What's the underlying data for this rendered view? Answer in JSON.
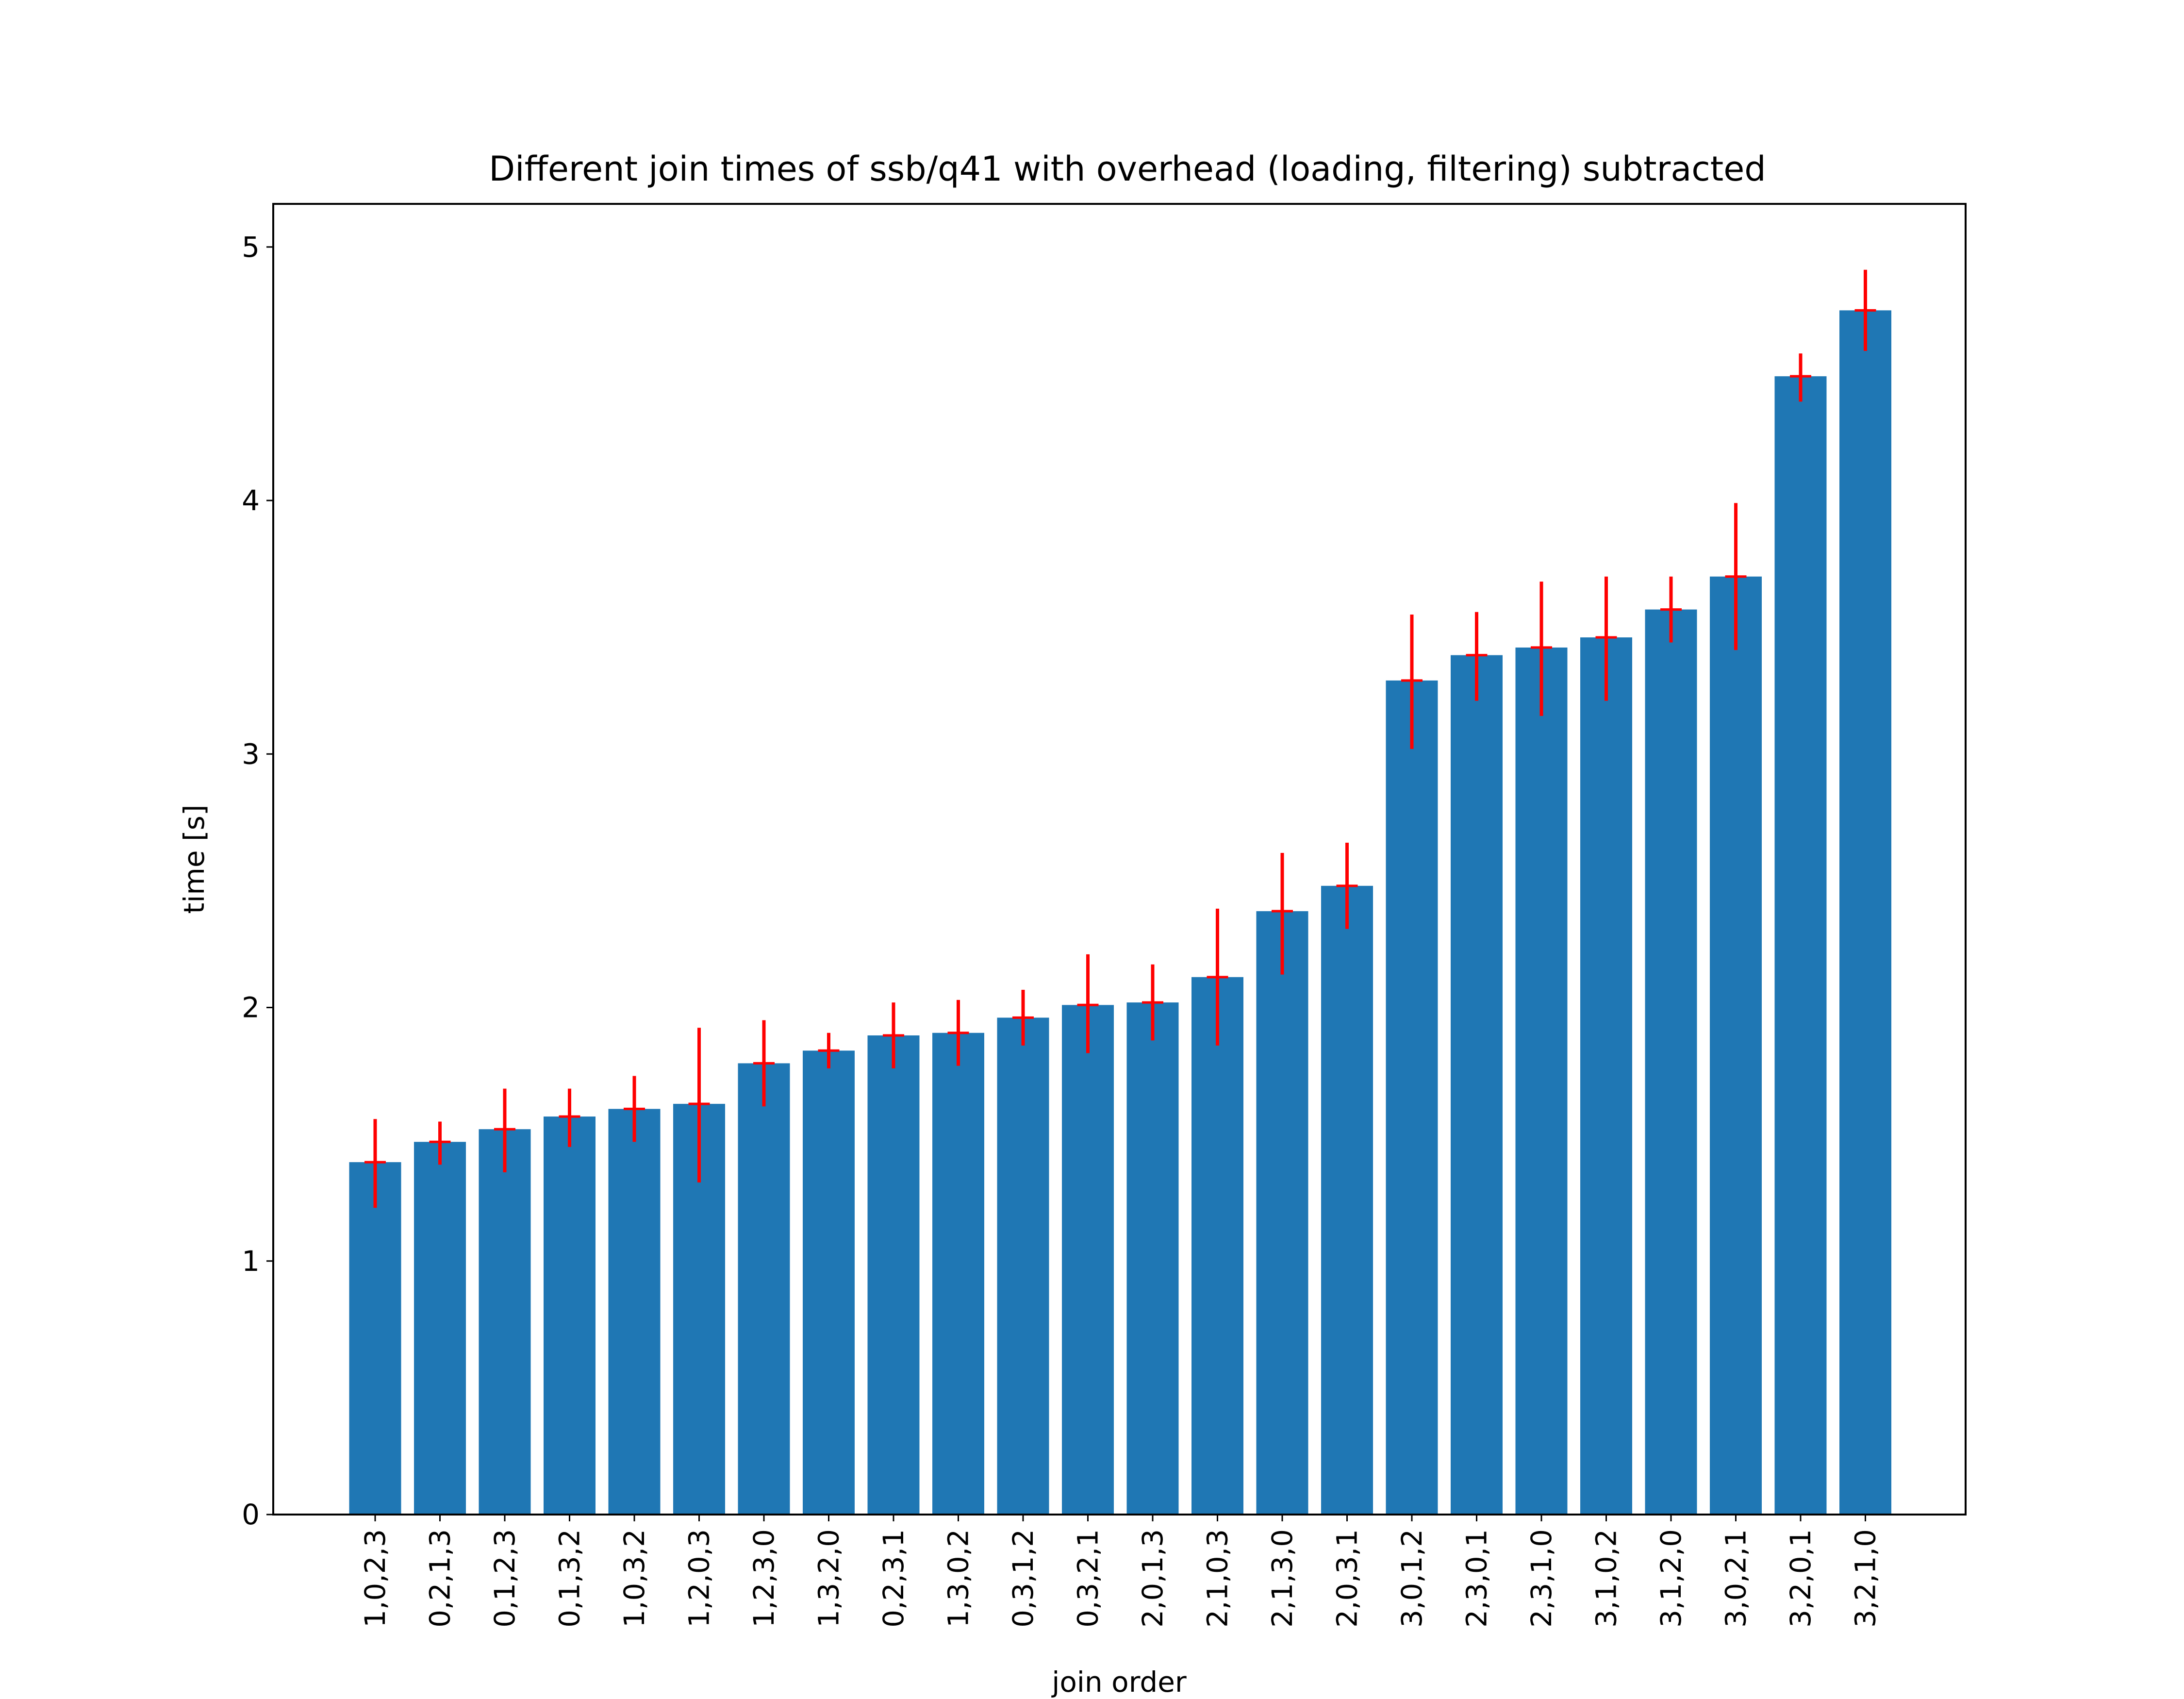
{
  "chart_data": {
    "type": "bar",
    "title": "Different join times of ssb/q41 with overhead (loading, filtering) subtracted",
    "xlabel": "join order",
    "ylabel": "time [s]",
    "ylim": [
      0,
      5.17
    ],
    "yticks": [
      "0",
      "1",
      "2",
      "3",
      "4",
      "5"
    ],
    "grid": false,
    "legend": "none",
    "colors": {
      "bar": "#1f77b4",
      "error": "#ff0000",
      "axis": "#000000"
    },
    "categories": [
      "1,0,2,3",
      "0,2,1,3",
      "0,1,2,3",
      "0,1,3,2",
      "1,0,3,2",
      "1,2,0,3",
      "1,2,3,0",
      "1,3,2,0",
      "0,2,3,1",
      "1,3,0,2",
      "0,3,1,2",
      "0,3,2,1",
      "2,0,1,3",
      "2,1,0,3",
      "2,1,3,0",
      "2,0,3,1",
      "3,0,1,2",
      "2,3,0,1",
      "2,3,1,0",
      "3,1,0,2",
      "3,1,2,0",
      "3,0,2,1",
      "3,2,0,1",
      "3,2,1,0"
    ],
    "values": [
      1.39,
      1.47,
      1.52,
      1.57,
      1.6,
      1.62,
      1.78,
      1.83,
      1.89,
      1.9,
      1.96,
      2.01,
      2.02,
      2.12,
      2.38,
      2.48,
      3.29,
      3.39,
      3.42,
      3.46,
      3.57,
      3.7,
      4.49,
      4.75
    ],
    "error_lower": [
      1.21,
      1.38,
      1.35,
      1.45,
      1.47,
      1.31,
      1.61,
      1.76,
      1.76,
      1.77,
      1.85,
      1.82,
      1.87,
      1.85,
      2.13,
      2.31,
      3.02,
      3.21,
      3.15,
      3.21,
      3.44,
      3.41,
      4.39,
      4.59
    ],
    "error_upper": [
      1.56,
      1.55,
      1.68,
      1.68,
      1.73,
      1.92,
      1.95,
      1.9,
      2.02,
      2.03,
      2.07,
      2.21,
      2.17,
      2.39,
      2.61,
      2.65,
      3.55,
      3.56,
      3.68,
      3.7,
      3.7,
      3.99,
      4.58,
      4.91
    ]
  }
}
